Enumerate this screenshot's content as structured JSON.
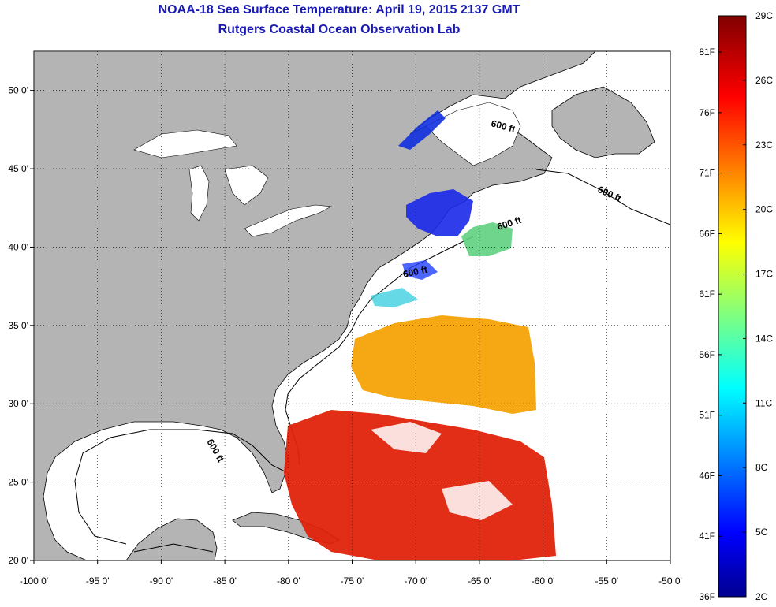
{
  "header": {
    "title": "NOAA-18 Sea Surface Temperature:  April 19, 2015 2137 GMT",
    "subtitle": "Rutgers Coastal Ocean Observation Lab"
  },
  "map": {
    "lon_range": [
      -100,
      -50
    ],
    "lat_range": [
      20,
      52.5
    ],
    "lon_ticks": [
      "-100 0'",
      "-95 0'",
      "-90 0'",
      "-85 0'",
      "-80 0'",
      "-75 0'",
      "-70 0'",
      "-65 0'",
      "-60 0'",
      "-55 0'",
      "-50 0'"
    ],
    "lat_ticks": [
      "20 0'",
      "25 0'",
      "30 0'",
      "35 0'",
      "40 0'",
      "45 0'",
      "50 0'"
    ],
    "contour_labels": [
      "600 ft",
      "600 ft",
      "600 ft",
      "600 ft",
      "600 ft"
    ],
    "land_color": "#b4b4b4",
    "ocean_color": "#ffffff"
  },
  "colorbar": {
    "celsius_labels": [
      "29C",
      "26C",
      "23C",
      "20C",
      "17C",
      "14C",
      "11C",
      "8C",
      "5C",
      "2C"
    ],
    "fahrenheit_labels": [
      "81F",
      "76F",
      "71F",
      "66F",
      "61F",
      "56F",
      "51F",
      "46F",
      "41F",
      "36F"
    ],
    "celsius_range": [
      2,
      29
    ],
    "fahrenheit_range": [
      36,
      84
    ]
  }
}
